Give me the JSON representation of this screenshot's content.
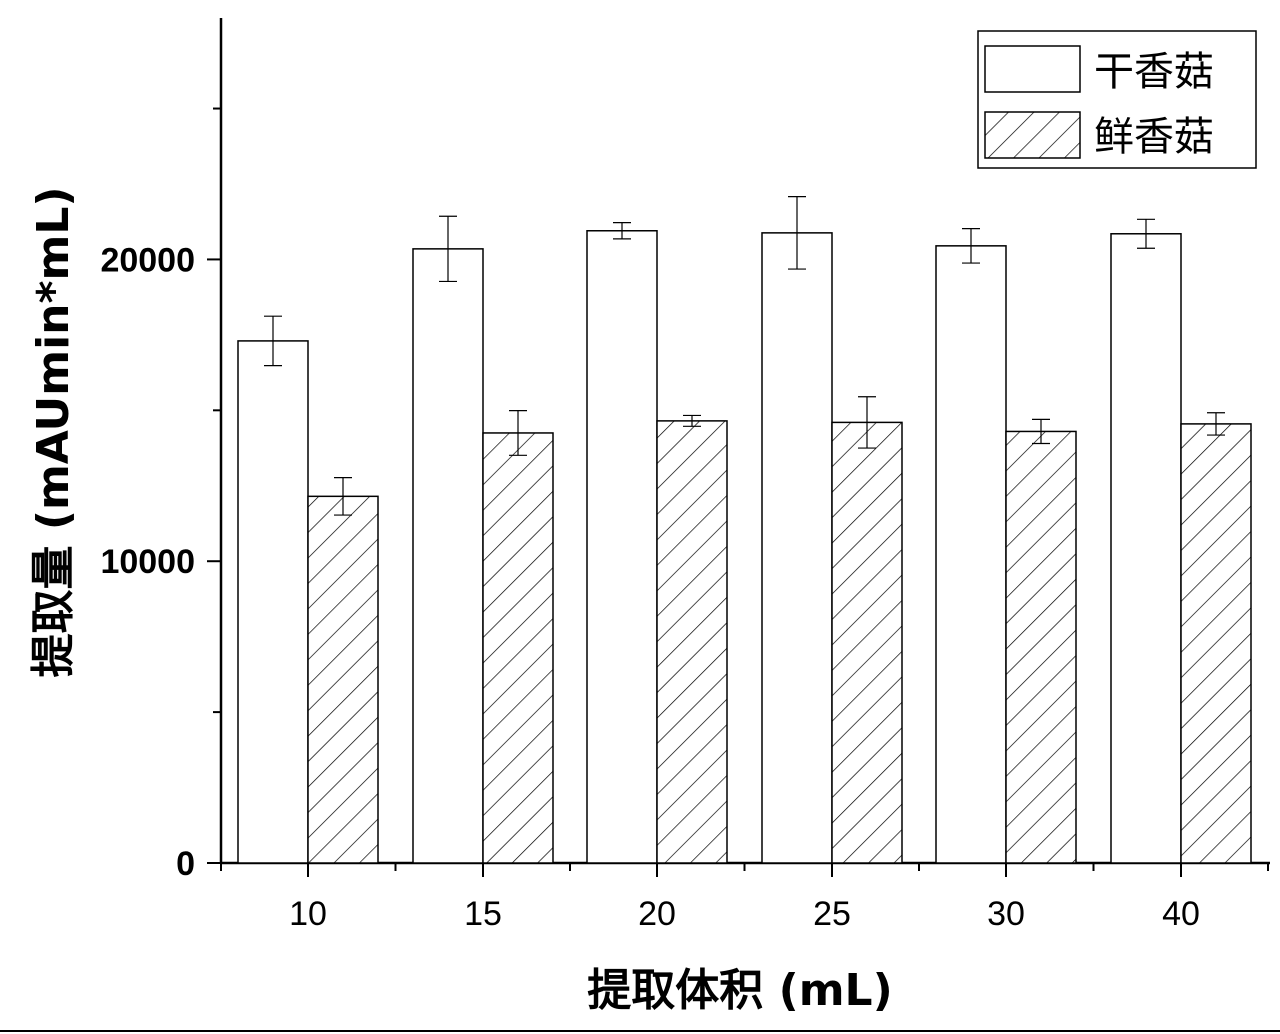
{
  "chart_data": {
    "type": "bar",
    "categories": [
      "10",
      "15",
      "20",
      "25",
      "30",
      "40"
    ],
    "series": [
      {
        "name": "干香菇",
        "values": [
          17300,
          20350,
          20950,
          20880,
          20450,
          20850
        ],
        "errors": [
          820,
          1080,
          270,
          1200,
          570,
          480
        ],
        "fill": "#ffffff",
        "pattern": "none"
      },
      {
        "name": "鲜香菇",
        "values": [
          12150,
          14250,
          14650,
          14600,
          14300,
          14550
        ],
        "errors": [
          620,
          740,
          180,
          850,
          400,
          370
        ],
        "fill": "#ffffff",
        "pattern": "hatch"
      }
    ],
    "xlabel": "提取体积 (mL)",
    "ylabel": "提取量 (mAUmin*mL)",
    "ylim": [
      0,
      28000
    ],
    "yticks_labeled": [
      "0",
      "10000",
      "20000"
    ],
    "yticks_major": [
      0,
      10000,
      20000
    ],
    "yticks_minor": [
      5000,
      15000,
      25000
    ],
    "legend_position": "top-right",
    "grid": false,
    "color_axis": "#000000"
  }
}
